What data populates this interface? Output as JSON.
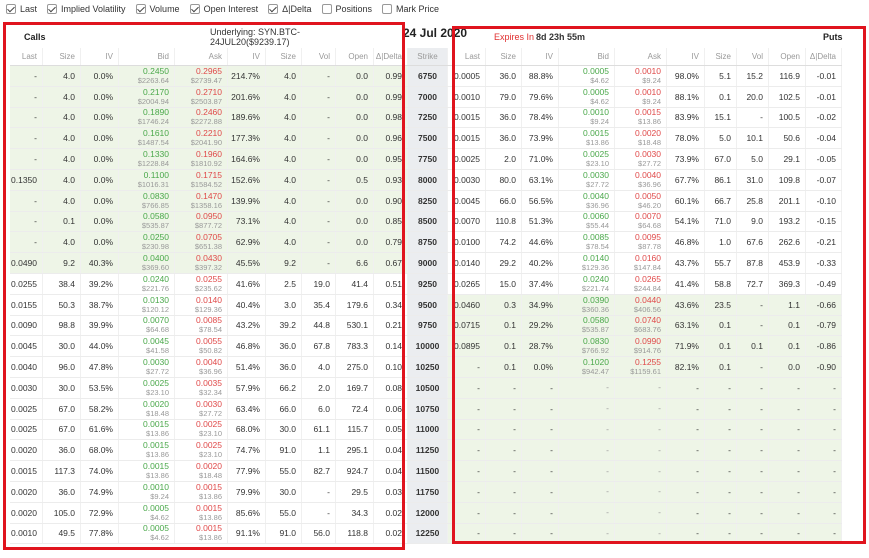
{
  "toolbar": [
    {
      "label": "Last",
      "checked": true
    },
    {
      "label": "Implied Volatility",
      "checked": true
    },
    {
      "label": "Volume",
      "checked": true
    },
    {
      "label": "Open Interest",
      "checked": true
    },
    {
      "label": "Δ|Delta",
      "checked": true
    },
    {
      "label": "Positions",
      "checked": false
    },
    {
      "label": "Mark Price",
      "checked": false
    }
  ],
  "calls_title": "Calls",
  "underlying": "Underlying: SYN.BTC-24JUL20($9239.17)",
  "date_title": "24 Jul 2020",
  "expires_label": "Expires In",
  "expires_value": "8d 23h 55m",
  "puts_title": "Puts",
  "call_columns": [
    "Last",
    "Size",
    "IV",
    "Bid",
    "Ask",
    "IV",
    "Size",
    "Vol",
    "Open",
    "Δ|Delta"
  ],
  "strike_column": "Strike",
  "put_columns": [
    "Last",
    "Size",
    "IV",
    "Bid",
    "Ask",
    "IV",
    "Size",
    "Vol",
    "Open",
    "Δ|Delta"
  ],
  "rows": [
    {
      "strike": "6750",
      "call": [
        "-",
        "4.0",
        "0.0%",
        [
          "0.2450",
          "$2263.64"
        ],
        [
          "0.2965",
          "$2739.47"
        ],
        "214.7%",
        "4.0",
        "-",
        "0.0",
        "0.99"
      ],
      "put": [
        "0.0005",
        "36.0",
        "88.8%",
        [
          "0.0005",
          "$4.62"
        ],
        [
          "0.0010",
          "$9.24"
        ],
        "98.0%",
        "5.1",
        "15.2",
        "116.9",
        "-0.01"
      ]
    },
    {
      "strike": "7000",
      "call": [
        "-",
        "4.0",
        "0.0%",
        [
          "0.2170",
          "$2004.94"
        ],
        [
          "0.2710",
          "$2503.87"
        ],
        "201.6%",
        "4.0",
        "-",
        "0.0",
        "0.99"
      ],
      "put": [
        "0.0010",
        "79.0",
        "79.6%",
        [
          "0.0005",
          "$4.62"
        ],
        [
          "0.0010",
          "$9.24"
        ],
        "88.1%",
        "0.1",
        "20.0",
        "102.5",
        "-0.01"
      ]
    },
    {
      "strike": "7250",
      "call": [
        "-",
        "4.0",
        "0.0%",
        [
          "0.1890",
          "$1746.24"
        ],
        [
          "0.2460",
          "$2272.88"
        ],
        "189.6%",
        "4.0",
        "-",
        "0.0",
        "0.98"
      ],
      "put": [
        "0.0015",
        "36.0",
        "78.4%",
        [
          "0.0010",
          "$9.24"
        ],
        [
          "0.0015",
          "$13.86"
        ],
        "83.9%",
        "15.1",
        "-",
        "100.5",
        "-0.02"
      ]
    },
    {
      "strike": "7500",
      "call": [
        "-",
        "4.0",
        "0.0%",
        [
          "0.1610",
          "$1487.54"
        ],
        [
          "0.2210",
          "$2041.90"
        ],
        "177.3%",
        "4.0",
        "-",
        "0.0",
        "0.96"
      ],
      "put": [
        "0.0015",
        "36.0",
        "73.9%",
        [
          "0.0015",
          "$13.86"
        ],
        [
          "0.0020",
          "$18.48"
        ],
        "78.0%",
        "5.0",
        "10.1",
        "50.6",
        "-0.04"
      ]
    },
    {
      "strike": "7750",
      "call": [
        "-",
        "4.0",
        "0.0%",
        [
          "0.1330",
          "$1228.84"
        ],
        [
          "0.1960",
          "$1810.92"
        ],
        "164.6%",
        "4.0",
        "-",
        "0.0",
        "0.95"
      ],
      "put": [
        "0.0025",
        "2.0",
        "71.0%",
        [
          "0.0025",
          "$23.10"
        ],
        [
          "0.0030",
          "$27.72"
        ],
        "73.9%",
        "67.0",
        "5.0",
        "29.1",
        "-0.05"
      ]
    },
    {
      "strike": "8000",
      "call": [
        "0.1350",
        "4.0",
        "0.0%",
        [
          "0.1100",
          "$1016.31"
        ],
        [
          "0.1715",
          "$1584.52"
        ],
        "152.6%",
        "4.0",
        "-",
        "0.5",
        "0.93"
      ],
      "put": [
        "0.0030",
        "80.0",
        "63.1%",
        [
          "0.0030",
          "$27.72"
        ],
        [
          "0.0040",
          "$36.96"
        ],
        "67.7%",
        "86.1",
        "31.0",
        "109.8",
        "-0.07"
      ]
    },
    {
      "strike": "8250",
      "call": [
        "-",
        "4.0",
        "0.0%",
        [
          "0.0830",
          "$766.85"
        ],
        [
          "0.1470",
          "$1358.16"
        ],
        "139.9%",
        "4.0",
        "-",
        "0.0",
        "0.90"
      ],
      "put": [
        "0.0045",
        "66.0",
        "56.5%",
        [
          "0.0040",
          "$36.96"
        ],
        [
          "0.0050",
          "$46.20"
        ],
        "60.1%",
        "66.7",
        "25.8",
        "201.1",
        "-0.10"
      ]
    },
    {
      "strike": "8500",
      "call": [
        "-",
        "0.1",
        "0.0%",
        [
          "0.0580",
          "$535.87"
        ],
        [
          "0.0950",
          "$877.72"
        ],
        "73.1%",
        "4.0",
        "-",
        "0.0",
        "0.85"
      ],
      "put": [
        "0.0070",
        "110.8",
        "51.3%",
        [
          "0.0060",
          "$55.44"
        ],
        [
          "0.0070",
          "$64.68"
        ],
        "54.1%",
        "71.0",
        "9.0",
        "193.2",
        "-0.15"
      ]
    },
    {
      "strike": "8750",
      "call": [
        "-",
        "4.0",
        "0.0%",
        [
          "0.0250",
          "$230.98"
        ],
        [
          "0.0705",
          "$651.38"
        ],
        "62.9%",
        "4.0",
        "-",
        "0.0",
        "0.79"
      ],
      "put": [
        "0.0100",
        "74.2",
        "44.6%",
        [
          "0.0085",
          "$78.54"
        ],
        [
          "0.0095",
          "$87.78"
        ],
        "46.8%",
        "1.0",
        "67.6",
        "262.6",
        "-0.21"
      ]
    },
    {
      "strike": "9000",
      "call": [
        "0.0490",
        "9.2",
        "40.3%",
        [
          "0.0400",
          "$369.60"
        ],
        [
          "0.0430",
          "$397.32"
        ],
        "45.5%",
        "9.2",
        "-",
        "6.6",
        "0.67"
      ],
      "put": [
        "0.0140",
        "29.2",
        "40.2%",
        [
          "0.0140",
          "$129.36"
        ],
        [
          "0.0160",
          "$147.84"
        ],
        "43.7%",
        "55.7",
        "87.8",
        "453.9",
        "-0.33"
      ]
    },
    {
      "strike": "9250",
      "call": [
        "0.0255",
        "38.4",
        "39.2%",
        [
          "0.0240",
          "$221.76"
        ],
        [
          "0.0255",
          "$235.62"
        ],
        "41.6%",
        "2.5",
        "19.0",
        "41.4",
        "0.51"
      ],
      "put": [
        "0.0265",
        "15.0",
        "37.4%",
        [
          "0.0240",
          "$221.74"
        ],
        [
          "0.0265",
          "$244.84"
        ],
        "41.4%",
        "58.8",
        "72.7",
        "369.3",
        "-0.49"
      ]
    },
    {
      "strike": "9500",
      "call": [
        "0.0155",
        "50.3",
        "38.7%",
        [
          "0.0130",
          "$120.12"
        ],
        [
          "0.0140",
          "$129.36"
        ],
        "40.4%",
        "3.0",
        "35.4",
        "179.6",
        "0.34"
      ],
      "put": [
        "0.0460",
        "0.3",
        "34.9%",
        [
          "0.0390",
          "$360.36"
        ],
        [
          "0.0440",
          "$406.56"
        ],
        "43.6%",
        "23.5",
        "-",
        "1.1",
        "-0.66"
      ]
    },
    {
      "strike": "9750",
      "call": [
        "0.0090",
        "98.8",
        "39.9%",
        [
          "0.0070",
          "$64.68"
        ],
        [
          "0.0085",
          "$78.54"
        ],
        "43.2%",
        "39.2",
        "44.8",
        "530.1",
        "0.21"
      ],
      "put": [
        "0.0715",
        "0.1",
        "29.2%",
        [
          "0.0580",
          "$535.87"
        ],
        [
          "0.0740",
          "$683.76"
        ],
        "63.1%",
        "0.1",
        "-",
        "0.1",
        "-0.79"
      ]
    },
    {
      "strike": "10000",
      "call": [
        "0.0045",
        "30.0",
        "44.0%",
        [
          "0.0045",
          "$41.58"
        ],
        [
          "0.0055",
          "$50.82"
        ],
        "46.8%",
        "36.0",
        "67.8",
        "783.3",
        "0.14"
      ],
      "put": [
        "0.0895",
        "0.1",
        "28.7%",
        [
          "0.0830",
          "$766.92"
        ],
        [
          "0.0990",
          "$914.76"
        ],
        "71.9%",
        "0.1",
        "0.1",
        "0.1",
        "-0.86"
      ]
    },
    {
      "strike": "10250",
      "call": [
        "0.0040",
        "96.0",
        "47.8%",
        [
          "0.0030",
          "$27.72"
        ],
        [
          "0.0040",
          "$36.96"
        ],
        "51.4%",
        "36.0",
        "4.0",
        "275.0",
        "0.10"
      ],
      "put": [
        "-",
        "0.1",
        "0.0%",
        [
          "0.1020",
          "$942.47"
        ],
        [
          "0.1255",
          "$1159.61"
        ],
        "82.1%",
        "0.1",
        "-",
        "0.0",
        "-0.90"
      ]
    },
    {
      "strike": "10500",
      "call": [
        "0.0030",
        "30.0",
        "53.5%",
        [
          "0.0025",
          "$23.10"
        ],
        [
          "0.0035",
          "$32.34"
        ],
        "57.9%",
        "66.2",
        "2.0",
        "169.7",
        "0.08"
      ],
      "put": [
        "-",
        "-",
        "-",
        [
          "-",
          ""
        ],
        [
          "-",
          ""
        ],
        "-",
        "-",
        "-",
        "-",
        "-"
      ]
    },
    {
      "strike": "10750",
      "call": [
        "0.0025",
        "67.0",
        "58.2%",
        [
          "0.0020",
          "$18.48"
        ],
        [
          "0.0030",
          "$27.72"
        ],
        "63.4%",
        "66.0",
        "6.0",
        "72.4",
        "0.06"
      ],
      "put": [
        "-",
        "-",
        "-",
        [
          "-",
          ""
        ],
        [
          "-",
          ""
        ],
        "-",
        "-",
        "-",
        "-",
        "-"
      ]
    },
    {
      "strike": "11000",
      "call": [
        "0.0025",
        "67.0",
        "61.6%",
        [
          "0.0015",
          "$13.86"
        ],
        [
          "0.0025",
          "$23.10"
        ],
        "68.0%",
        "30.0",
        "61.1",
        "115.7",
        "0.05"
      ],
      "put": [
        "-",
        "-",
        "-",
        [
          "-",
          ""
        ],
        [
          "-",
          ""
        ],
        "-",
        "-",
        "-",
        "-",
        "-"
      ]
    },
    {
      "strike": "11250",
      "call": [
        "0.0020",
        "36.0",
        "68.0%",
        [
          "0.0015",
          "$13.86"
        ],
        [
          "0.0025",
          "$23.10"
        ],
        "74.7%",
        "91.0",
        "1.1",
        "295.1",
        "0.04"
      ],
      "put": [
        "-",
        "-",
        "-",
        [
          "-",
          ""
        ],
        [
          "-",
          ""
        ],
        "-",
        "-",
        "-",
        "-",
        "-"
      ]
    },
    {
      "strike": "11500",
      "call": [
        "0.0015",
        "117.3",
        "74.0%",
        [
          "0.0015",
          "$13.86"
        ],
        [
          "0.0020",
          "$18.48"
        ],
        "77.9%",
        "55.0",
        "82.7",
        "924.7",
        "0.04"
      ],
      "put": [
        "-",
        "-",
        "-",
        [
          "-",
          ""
        ],
        [
          "-",
          ""
        ],
        "-",
        "-",
        "-",
        "-",
        "-"
      ]
    },
    {
      "strike": "11750",
      "call": [
        "0.0020",
        "36.0",
        "74.9%",
        [
          "0.0010",
          "$9.24"
        ],
        [
          "0.0015",
          "$13.86"
        ],
        "79.9%",
        "30.0",
        "-",
        "29.5",
        "0.03"
      ],
      "put": [
        "-",
        "-",
        "-",
        [
          "-",
          ""
        ],
        [
          "-",
          ""
        ],
        "-",
        "-",
        "-",
        "-",
        "-"
      ]
    },
    {
      "strike": "12000",
      "call": [
        "0.0020",
        "105.0",
        "72.9%",
        [
          "0.0005",
          "$4.62"
        ],
        [
          "0.0015",
          "$13.86"
        ],
        "85.6%",
        "55.0",
        "-",
        "34.3",
        "0.02"
      ],
      "put": [
        "-",
        "-",
        "-",
        [
          "-",
          ""
        ],
        [
          "-",
          ""
        ],
        "-",
        "-",
        "-",
        "-",
        "-"
      ]
    },
    {
      "strike": "12250",
      "call": [
        "0.0010",
        "49.5",
        "77.8%",
        [
          "0.0005",
          "$4.62"
        ],
        [
          "0.0015",
          "$13.86"
        ],
        "91.1%",
        "91.0",
        "56.0",
        "118.8",
        "0.02"
      ],
      "put": [
        "-",
        "-",
        "-",
        [
          "-",
          ""
        ],
        [
          "-",
          ""
        ],
        "-",
        "-",
        "-",
        "-",
        "-"
      ]
    }
  ],
  "itm_calls_through_strike": "9000",
  "itm_puts_from_strike": "9500"
}
